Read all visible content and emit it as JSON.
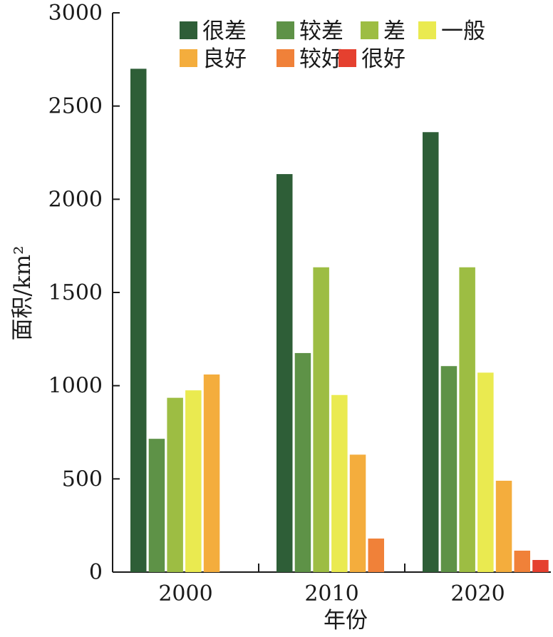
{
  "chart_data": {
    "type": "bar",
    "categories": [
      "2000",
      "2010",
      "2020"
    ],
    "ylabel": "面积/km²",
    "xlabel": "年份",
    "ylim": [
      0,
      3000
    ],
    "yticks": [
      0,
      500,
      1000,
      1500,
      2000,
      2500,
      3000
    ],
    "grid": false,
    "legend_position": "top",
    "series": [
      {
        "name": "很差",
        "color": "#2e5e37",
        "values": [
          2700,
          2135,
          2360
        ]
      },
      {
        "name": "较差",
        "color": "#5e9247",
        "values": [
          715,
          1175,
          1105
        ]
      },
      {
        "name": "差",
        "color": "#9dbd43",
        "values": [
          935,
          1635,
          1635
        ]
      },
      {
        "name": "一般",
        "color": "#eaea50",
        "values": [
          975,
          950,
          1070
        ]
      },
      {
        "name": "良好",
        "color": "#f4ad3d",
        "values": [
          1060,
          630,
          490
        ]
      },
      {
        "name": "较好",
        "color": "#f08139",
        "values": [
          0,
          180,
          115
        ]
      },
      {
        "name": "很好",
        "color": "#e5402f",
        "values": [
          0,
          0,
          65
        ]
      }
    ]
  }
}
